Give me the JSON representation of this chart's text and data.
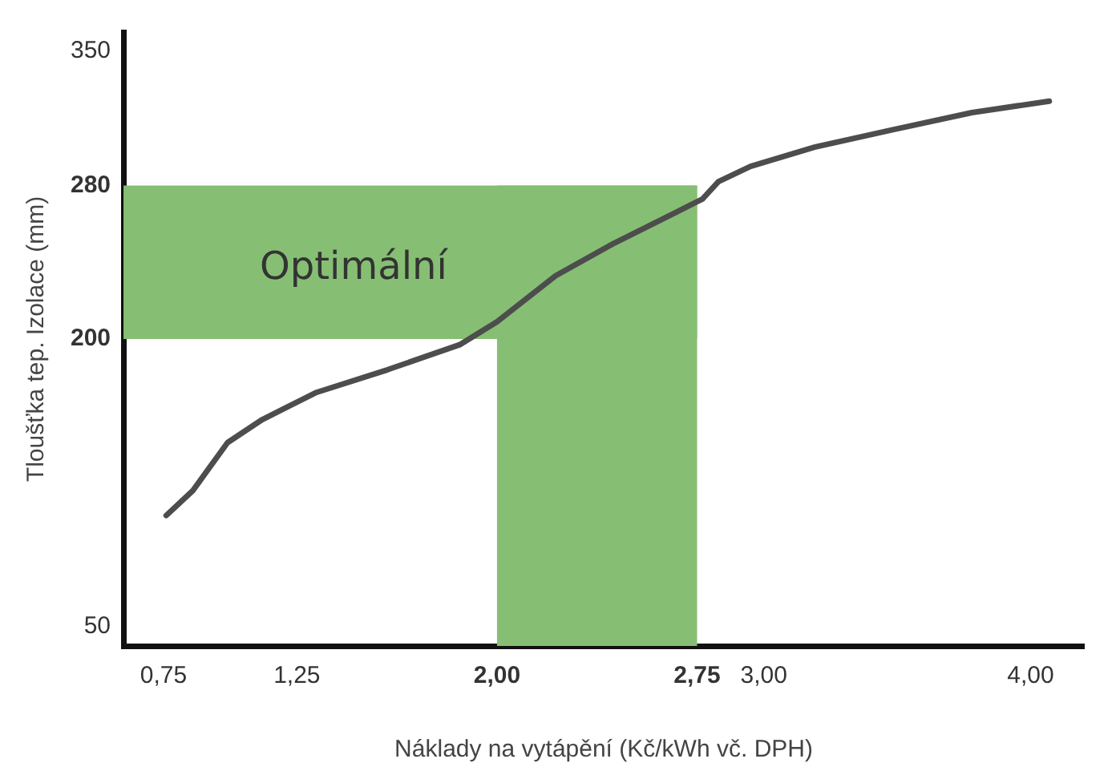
{
  "chart_data": {
    "type": "line",
    "xlabel": "Náklady na vytápění (Kč/kWh vč. DPH)",
    "ylabel": "Tloušťka tep. Izolace (mm)",
    "x": [
      0.76,
      0.86,
      0.99,
      1.12,
      1.32,
      1.59,
      1.86,
      2.0,
      2.22,
      2.44,
      2.67,
      2.77,
      2.83,
      2.95,
      3.19,
      3.48,
      3.78,
      4.07
    ],
    "series": [
      {
        "color": "#4d4d4d",
        "values": [
          108,
          121,
          146,
          158,
          172,
          184,
          197,
          209,
          233,
          250,
          266,
          273,
          282,
          290,
          300,
          309,
          318,
          324
        ]
      }
    ],
    "xlim": [
      0.6,
      4.2
    ],
    "ylim": [
      40,
      360
    ],
    "xticks": [
      {
        "value": 0.75,
        "label": "0,75"
      },
      {
        "value": 1.25,
        "label": "1,25"
      },
      {
        "value": 2.0,
        "label": "2,00"
      },
      {
        "value": 2.75,
        "label": "2,75"
      },
      {
        "value": 3.0,
        "label": "3,00"
      },
      {
        "value": 4.0,
        "label": "4,00"
      }
    ],
    "yticks": [
      50,
      200,
      280,
      350
    ],
    "bands": [
      {
        "axis": "y",
        "from": 200,
        "to": 280,
        "label": "Optimální",
        "color": "#86bf73"
      },
      {
        "axis": "x",
        "from": 2.0,
        "to": 2.75,
        "label": null,
        "color": "#86bf73"
      }
    ],
    "grid": false,
    "legend": false,
    "marker": "none",
    "line_style": "solid"
  }
}
